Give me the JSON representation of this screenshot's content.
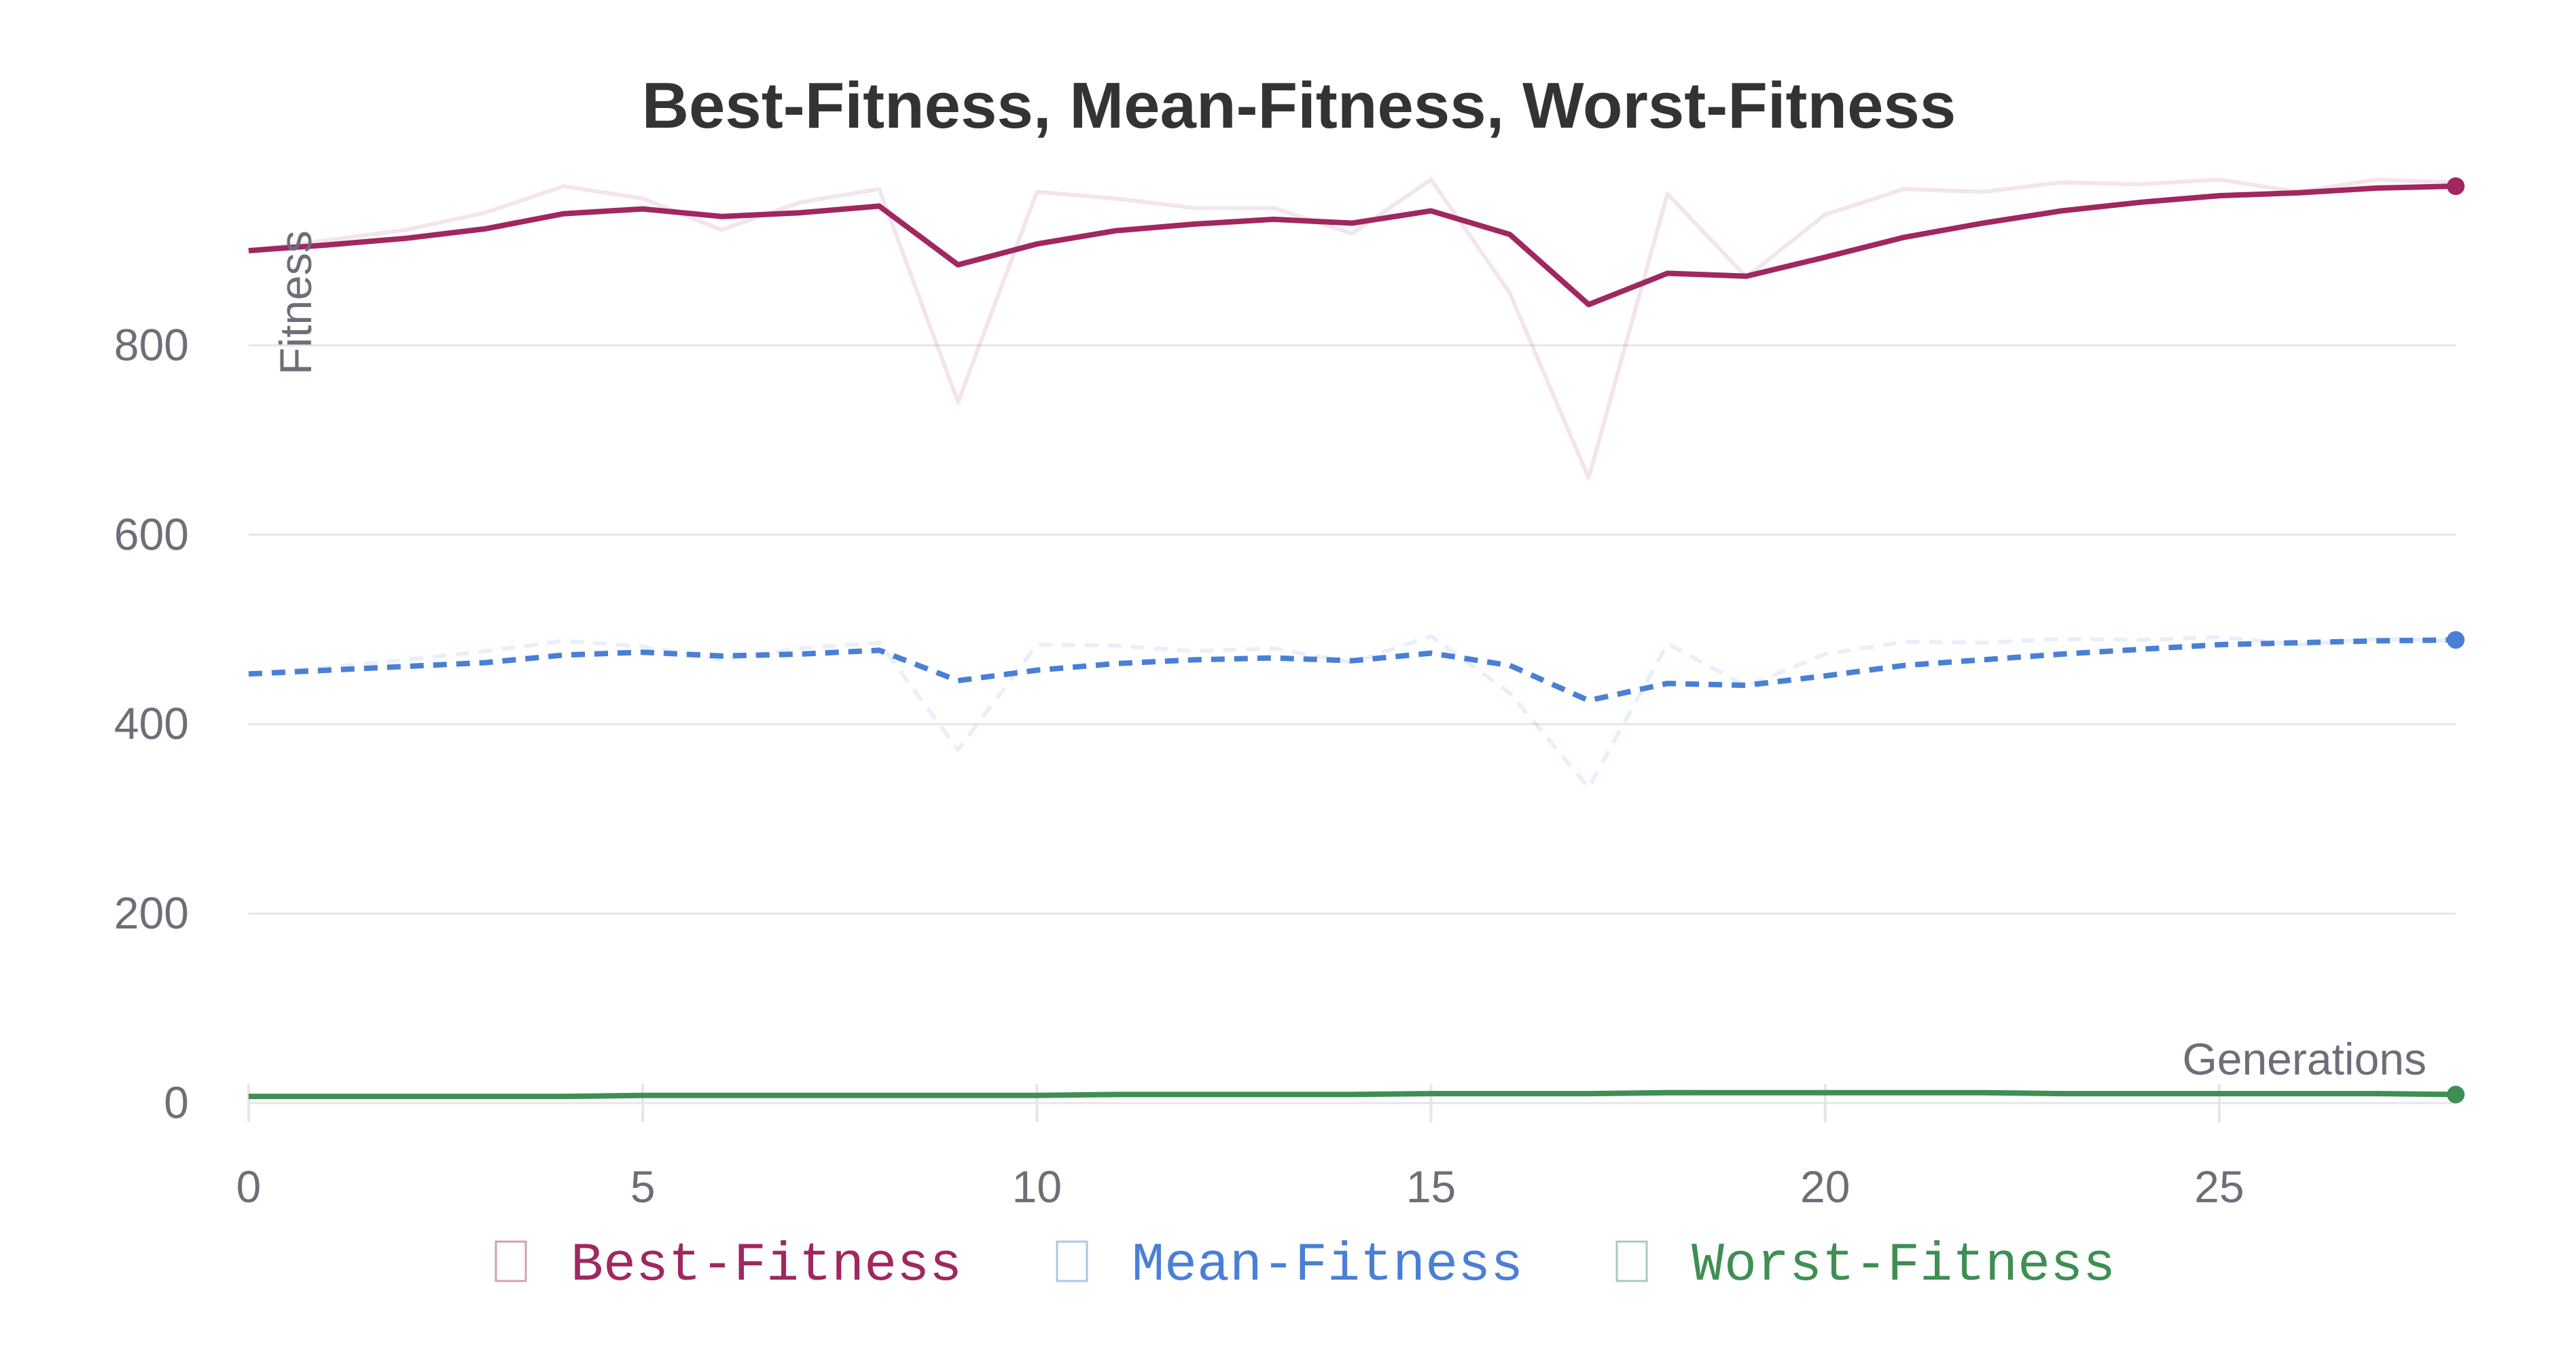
{
  "chart_data": {
    "type": "line",
    "title": "Best-Fitness, Mean-Fitness, Worst-Fitness",
    "xlabel": "Generations",
    "ylabel": "Fitness",
    "xlim": [
      0,
      28
    ],
    "ylim": [
      -5,
      980
    ],
    "x_ticks": [
      "0",
      "5",
      "10",
      "15",
      "20",
      "25"
    ],
    "y_ticks": [
      "0",
      "200",
      "400",
      "600",
      "800"
    ],
    "grid": "horizontal",
    "legend_position": "bottom",
    "x": [
      0,
      1,
      2,
      3,
      4,
      5,
      6,
      7,
      8,
      9,
      10,
      11,
      12,
      13,
      14,
      15,
      16,
      17,
      18,
      19,
      20,
      21,
      22,
      23,
      24,
      25,
      26,
      27,
      28
    ],
    "series": [
      {
        "name": "Best-Fitness",
        "color": "#a0275f",
        "style": "solid",
        "values": [
          900,
          906,
          913,
          923,
          939,
          944,
          936,
          940,
          947,
          885,
          907,
          921,
          928,
          933,
          929,
          942,
          917,
          843,
          876,
          873,
          893,
          914,
          929,
          942,
          951,
          958,
          961,
          966,
          968
        ],
        "raw_values": [
          900,
          911,
          922,
          940,
          968,
          955,
          922,
          951,
          965,
          740,
          962,
          955,
          945,
          945,
          918,
          975,
          855,
          660,
          960,
          872,
          938,
          965,
          962,
          972,
          970,
          975,
          962,
          975,
          972
        ]
      },
      {
        "name": "Mean-Fitness",
        "color": "#4a7fd6",
        "style": "dashed",
        "values": [
          453,
          457,
          461,
          465,
          473,
          476,
          472,
          474,
          478,
          446,
          457,
          464,
          468,
          470,
          467,
          475,
          462,
          425,
          443,
          441,
          451,
          462,
          468,
          474,
          479,
          484,
          486,
          488,
          489
        ],
        "raw_values": [
          453,
          460,
          468,
          477,
          488,
          482,
          468,
          480,
          486,
          373,
          484,
          483,
          477,
          480,
          465,
          493,
          433,
          333,
          485,
          440,
          474,
          487,
          486,
          490,
          489,
          492,
          484,
          490,
          488
        ]
      },
      {
        "name": "Worst-Fitness",
        "color": "#3f8e54",
        "style": "solid",
        "values": [
          7,
          7,
          7,
          7,
          7,
          8,
          8,
          8,
          8,
          8,
          8,
          9,
          9,
          9,
          9,
          10,
          10,
          10,
          11,
          11,
          11,
          11,
          11,
          10,
          10,
          10,
          10,
          10,
          9
        ],
        "raw_values": [
          7,
          7,
          7,
          7,
          7,
          8,
          8,
          8,
          8,
          8,
          8,
          9,
          9,
          9,
          9,
          10,
          10,
          10,
          12,
          11,
          11,
          11,
          11,
          10,
          10,
          10,
          10,
          10,
          9
        ]
      }
    ]
  }
}
